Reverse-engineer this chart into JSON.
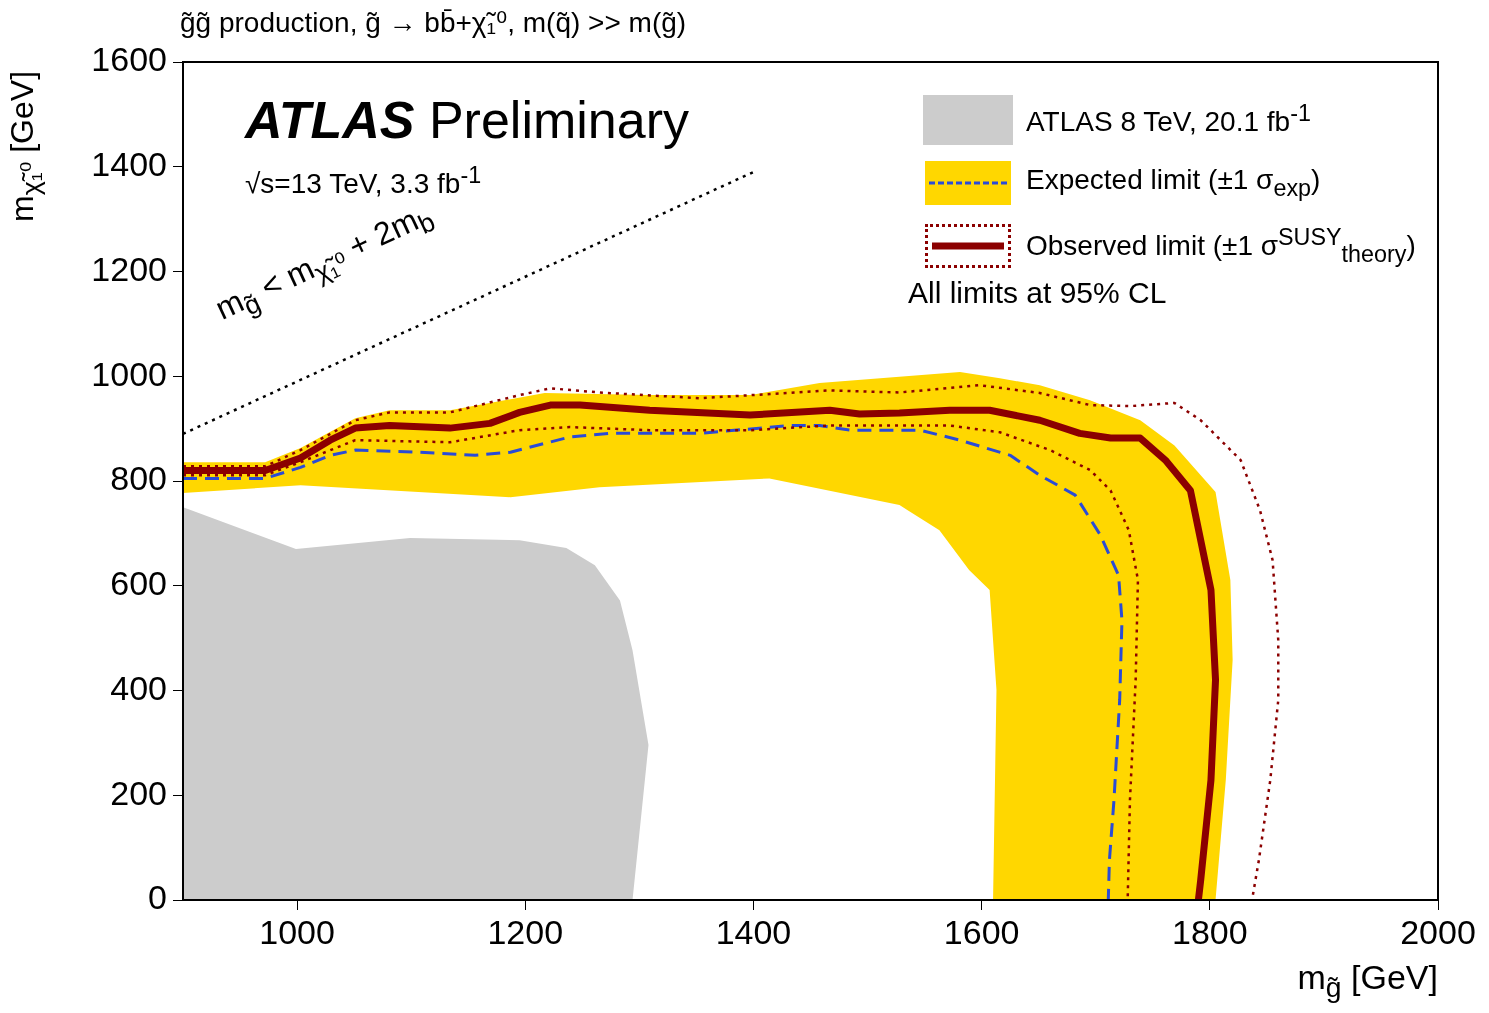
{
  "chart_data": {
    "type": "line",
    "title": "g̃g̃  production, g̃ → bb̄+χ̃₁⁰, m(q̃) >> m(g̃)",
    "xlabel": "m$_{g̃}$ [GeV]",
    "ylabel": "m$_{χ̃₁⁰}$ [GeV]",
    "xlim": [
      900,
      2000
    ],
    "xticks": [
      1000,
      1200,
      1400,
      1600,
      1800,
      2000
    ],
    "ylim": [
      0,
      1600
    ],
    "yticks": [
      0,
      200,
      400,
      600,
      800,
      1000,
      1200,
      1400,
      1600
    ],
    "grid": false,
    "legend": "top right",
    "marker": "none",
    "annotations": [
      "ATLAS Preliminary",
      "√s=13 TeV, 3.3 fb$^{-1}$",
      "All limits at 95% CL",
      "m$_{g̃}$ < m$_{χ̃₁⁰}$ + 2m$_{b}$"
    ],
    "series": [
      {
        "name": "ATLAS 8 TeV, 20.1 fb$^{-1}$",
        "type": "area",
        "color": "#cccccc",
        "x": [
          900,
          999,
          1099,
          1195,
          1236,
          1261,
          1283,
          1294,
          1308,
          1294,
          900
        ],
        "values": [
          750,
          670,
          691,
          687,
          672,
          639,
          572,
          477,
          296,
          0,
          0
        ]
      },
      {
        "type": "area",
        "color": "#ffd700",
        "x": [
          900,
          972,
          1003,
          1051,
          1081,
          1134,
          1217,
          1309,
          1397,
          1458,
          1581,
          1616,
          1651,
          1695,
          1739,
          1769,
          1805,
          1818,
          1820,
          1814,
          1805,
          1610,
          1613,
          1607,
          1589,
          1563,
          1528,
          1414,
          1265,
          1187,
          1003,
          900
        ],
        "values": [
          836,
          836,
          863,
          920,
          935,
          935,
          968,
          964,
          964,
          987,
          1008,
          996,
          983,
          954,
          916,
          868,
          779,
          611,
          458,
          229,
          0,
          0,
          401,
          592,
          630,
          706,
          754,
          805,
          788,
          769,
          792,
          777
        ]
      },
      {
        "type": "line",
        "color": "#8b0000",
        "line_style": "dotted",
        "x": [
          900,
          972,
          1003,
          1051,
          1081,
          1134,
          1195,
          1222,
          1265,
          1353,
          1467,
          1528,
          1598,
          1651,
          1695,
          1730,
          1769,
          1792,
          1827,
          1844,
          1855,
          1860,
          1860,
          1853,
          1843,
          1837
        ],
        "values": [
          828,
          828,
          859,
          916,
          931,
          931,
          964,
          977,
          969,
          958,
          973,
          969,
          983,
          968,
          945,
          943,
          949,
          916,
          840,
          744,
          649,
          496,
          382,
          229,
          76,
          0
        ]
      },
      {
        "type": "line",
        "color": "#8b0000",
        "line_style": "dotted",
        "x": [
          900,
          972,
          1003,
          1051,
          1134,
          1195,
          1239,
          1309,
          1397,
          1467,
          1572,
          1616,
          1660,
          1695,
          1713,
          1729,
          1737,
          1735,
          1730,
          1728
        ],
        "values": [
          811,
          811,
          836,
          878,
          874,
          897,
          903,
          897,
          897,
          906,
          906,
          893,
          859,
          821,
          782,
          706,
          611,
          420,
          191,
          0
        ]
      },
      {
        "name": "Expected limit (±1 σ$_{exp}$)",
        "type": "line",
        "color": "#2a4bd7",
        "line_style": "dashed",
        "x": [
          900,
          972,
          1003,
          1029,
          1051,
          1108,
          1156,
          1187,
          1239,
          1274,
          1353,
          1432,
          1458,
          1485,
          1546,
          1581,
          1625,
          1651,
          1682,
          1704,
          1720,
          1723,
          1721,
          1716,
          1712,
          1711
        ],
        "values": [
          805,
          805,
          826,
          849,
          859,
          855,
          849,
          855,
          884,
          891,
          891,
          906,
          906,
          897,
          897,
          878,
          849,
          811,
          773,
          697,
          620,
          534,
          382,
          191,
          76,
          0
        ]
      },
      {
        "name": "Observed limit (±1 σ$^{SUSY}$$_{theory}$)",
        "type": "line",
        "color": "#8b0000",
        "line_style": "solid",
        "x": [
          900,
          972,
          1003,
          1029,
          1051,
          1081,
          1134,
          1169,
          1195,
          1222,
          1248,
          1309,
          1397,
          1467,
          1493,
          1528,
          1572,
          1607,
          1651,
          1686,
          1713,
          1739,
          1761,
          1783,
          1801,
          1805,
          1801,
          1792,
          1790
        ],
        "values": [
          820,
          820,
          844,
          878,
          901,
          906,
          901,
          910,
          931,
          945,
          945,
          935,
          926,
          935,
          928,
          930,
          935,
          935,
          916,
          891,
          882,
          882,
          840,
          782,
          592,
          420,
          229,
          38,
          0
        ]
      },
      {
        "type": "line",
        "color": "#000000",
        "line_style": "dotted",
        "x": [
          900,
          1400
        ],
        "values": [
          890,
          1390
        ]
      }
    ]
  }
}
